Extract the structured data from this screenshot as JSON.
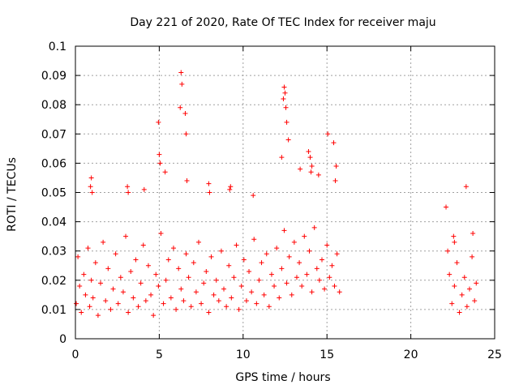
{
  "chart_data": {
    "type": "scatter",
    "title": "Day 221 of 2020, Rate Of TEC Index for receiver maju",
    "xlabel": "GPS time / hours",
    "ylabel": "ROTI / TECUs",
    "xlim": [
      0,
      25
    ],
    "ylim": [
      0,
      0.1
    ],
    "xticks": [
      0,
      5,
      10,
      15,
      20,
      25
    ],
    "xtick_labels": [
      "0",
      "5",
      "10",
      "15",
      "20",
      "25"
    ],
    "yticks": [
      0,
      0.01,
      0.02,
      0.03,
      0.04,
      0.05,
      0.06,
      0.07,
      0.08,
      0.09,
      0.1
    ],
    "ytick_labels": [
      "0",
      "0.01",
      "0.02",
      "0.03",
      "0.04",
      "0.05",
      "0.06",
      "0.07",
      "0.08",
      "0.09",
      "0.1"
    ],
    "grid": true,
    "marker": "+",
    "color": "#ff0000",
    "series": [
      {
        "x": [
          0.05,
          0.15,
          0.25,
          0.35,
          0.5,
          0.6,
          0.75,
          0.85,
          0.95,
          1.05,
          1.2,
          1.35,
          1.5,
          1.65,
          1.8,
          1.95,
          2.1,
          2.25,
          2.4,
          2.55,
          2.7,
          2.85,
          3.0,
          3.15,
          3.3,
          3.45,
          3.6,
          3.75,
          3.9,
          4.05,
          4.2,
          4.35,
          4.5,
          4.65,
          4.8,
          4.95,
          5.1,
          5.25,
          5.4,
          5.55,
          5.7,
          5.85,
          6.0,
          6.15,
          6.3,
          6.45,
          6.6,
          6.75,
          6.9,
          7.05,
          7.2,
          7.35,
          7.5,
          7.65,
          7.8,
          7.95,
          8.1,
          8.25,
          8.4,
          8.55,
          8.7,
          8.85,
          9.0,
          9.15,
          9.3,
          9.45,
          9.6,
          9.75,
          9.9,
          10.05,
          10.2,
          10.35,
          10.5,
          10.65,
          10.8,
          10.95,
          11.1,
          11.25,
          11.4,
          11.55,
          11.7,
          11.85,
          12.0,
          12.15,
          12.3,
          12.45,
          12.6,
          12.75,
          12.9,
          13.05,
          13.2,
          13.35,
          13.5,
          13.65,
          13.8,
          13.95,
          14.1,
          14.25,
          14.4,
          14.55,
          14.7,
          14.85,
          15.0,
          15.15,
          15.3,
          15.45,
          15.6,
          15.75,
          0.9,
          0.95,
          1.0,
          3.1,
          3.15,
          4.1,
          4.95,
          5.0,
          5.05,
          5.35,
          6.25,
          6.3,
          6.35,
          6.55,
          6.6,
          6.65,
          7.95,
          8.0,
          9.2,
          9.25,
          10.6,
          12.3,
          12.4,
          12.45,
          12.5,
          12.55,
          12.6,
          12.7,
          13.4,
          13.9,
          14.0,
          14.05,
          14.1,
          14.5,
          15.05,
          15.4,
          15.5,
          15.55,
          22.1,
          22.2,
          22.3,
          22.45,
          22.6,
          22.75,
          22.9,
          23.05,
          23.2,
          23.35,
          23.5,
          23.65,
          23.8,
          23.9,
          22.55,
          22.6,
          23.3,
          23.7
        ],
        "y": [
          0.012,
          0.028,
          0.018,
          0.009,
          0.022,
          0.015,
          0.031,
          0.011,
          0.02,
          0.014,
          0.026,
          0.008,
          0.019,
          0.033,
          0.013,
          0.024,
          0.01,
          0.017,
          0.029,
          0.012,
          0.021,
          0.016,
          0.035,
          0.009,
          0.023,
          0.014,
          0.027,
          0.011,
          0.019,
          0.032,
          0.013,
          0.025,
          0.015,
          0.008,
          0.022,
          0.018,
          0.036,
          0.012,
          0.02,
          0.027,
          0.014,
          0.031,
          0.01,
          0.024,
          0.017,
          0.013,
          0.029,
          0.021,
          0.011,
          0.026,
          0.016,
          0.033,
          0.012,
          0.019,
          0.023,
          0.009,
          0.028,
          0.015,
          0.02,
          0.013,
          0.03,
          0.017,
          0.011,
          0.025,
          0.014,
          0.021,
          0.032,
          0.01,
          0.018,
          0.027,
          0.013,
          0.023,
          0.016,
          0.034,
          0.012,
          0.02,
          0.026,
          0.015,
          0.029,
          0.011,
          0.022,
          0.018,
          0.031,
          0.014,
          0.024,
          0.037,
          0.019,
          0.028,
          0.015,
          0.033,
          0.021,
          0.026,
          0.018,
          0.035,
          0.022,
          0.03,
          0.016,
          0.038,
          0.024,
          0.02,
          0.027,
          0.017,
          0.032,
          0.021,
          0.025,
          0.018,
          0.029,
          0.016,
          0.052,
          0.055,
          0.05,
          0.052,
          0.05,
          0.051,
          0.074,
          0.063,
          0.06,
          0.057,
          0.079,
          0.091,
          0.087,
          0.077,
          0.07,
          0.054,
          0.053,
          0.05,
          0.051,
          0.052,
          0.049,
          0.062,
          0.082,
          0.086,
          0.084,
          0.079,
          0.074,
          0.068,
          0.058,
          0.064,
          0.062,
          0.057,
          0.059,
          0.056,
          0.07,
          0.067,
          0.054,
          0.059,
          0.045,
          0.03,
          0.022,
          0.012,
          0.018,
          0.026,
          0.009,
          0.015,
          0.021,
          0.011,
          0.017,
          0.028,
          0.013,
          0.019,
          0.035,
          0.033,
          0.052,
          0.036
        ]
      }
    ]
  }
}
